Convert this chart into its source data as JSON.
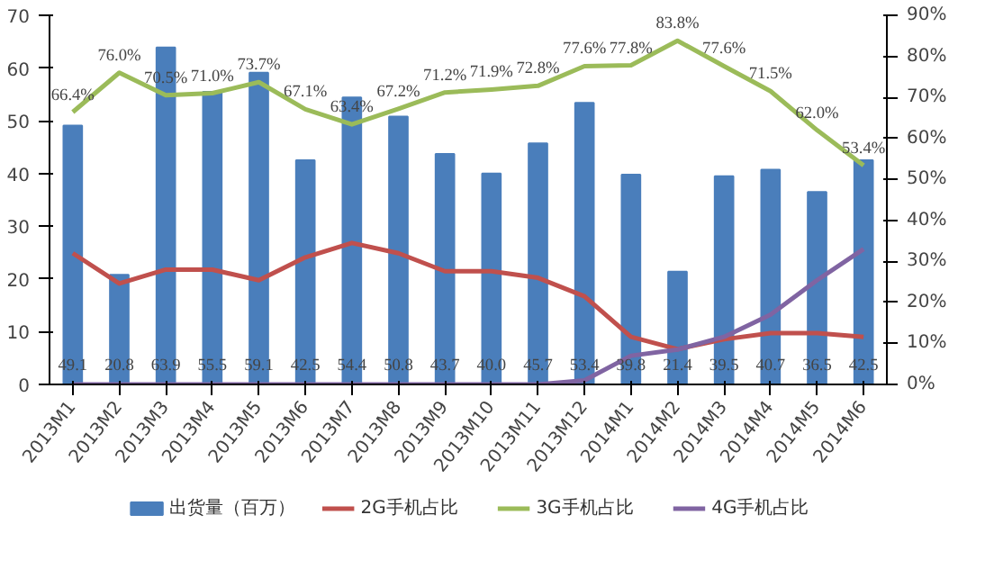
{
  "chart_data": {
    "type": "bar",
    "categories": [
      "2013M1",
      "2013M2",
      "2013M3",
      "2013M4",
      "2013M5",
      "2013M6",
      "2013M7",
      "2013M8",
      "2013M9",
      "2013M10",
      "2013M11",
      "2013M12",
      "2014M1",
      "2014M2",
      "2014M3",
      "2014M4",
      "2014M5",
      "2014M6"
    ],
    "series": [
      {
        "name": "出货量（百万）",
        "color": "#4a7ebb",
        "values": [
          49.1,
          20.8,
          63.9,
          55.5,
          59.1,
          42.5,
          54.4,
          50.8,
          43.7,
          40.0,
          45.7,
          53.4,
          39.8,
          21.4,
          39.5,
          40.7,
          36.5,
          42.5
        ],
        "value_labels": [
          "49.1",
          "20.8",
          "63.9",
          "55.5",
          "59.1",
          "42.5",
          "54.4",
          "50.8",
          "43.7",
          "40.0",
          "45.7",
          "53.4",
          "39.8",
          "21.4",
          "39.5",
          "40.7",
          "36.5",
          "42.5"
        ]
      },
      {
        "name": "2G手机占比",
        "type": "line",
        "axis": "y2",
        "color": "#c0504d",
        "values": [
          32,
          24.6,
          28,
          28,
          25.4,
          31,
          34.5,
          32,
          27.6,
          27.6,
          26,
          21.5,
          11.6,
          8.6,
          11,
          12.5,
          12.5,
          11.6
        ]
      },
      {
        "name": "3G手机占比",
        "type": "line",
        "axis": "y2",
        "color": "#9bbb59",
        "values": [
          66.4,
          76.0,
          70.5,
          71.0,
          73.7,
          67.1,
          63.4,
          67.2,
          71.2,
          71.9,
          72.8,
          77.6,
          77.8,
          83.8,
          77.6,
          71.5,
          62.0,
          53.4
        ],
        "value_labels": [
          "66.4%",
          "76.0%",
          "70.5%",
          "71.0%",
          "73.7%",
          "67.1%",
          "63.4%",
          "67.2%",
          "71.2%",
          "71.9%",
          "72.8%",
          "77.6%",
          "77.8%",
          "83.8%",
          "77.6%",
          "71.5%",
          "62.0%",
          "53.4%"
        ]
      },
      {
        "name": "4G手机占比",
        "type": "line",
        "axis": "y2",
        "color": "#8064a2",
        "values": [
          0,
          0,
          0,
          0,
          0,
          0,
          0,
          0,
          0,
          0,
          0,
          1,
          7,
          8.5,
          11.6,
          17,
          25.4,
          33
        ]
      }
    ],
    "ylim": [
      0,
      70
    ],
    "yticks": [
      0,
      10,
      20,
      30,
      40,
      50,
      60,
      70
    ],
    "y2lim": [
      0,
      90
    ],
    "y2ticks": [
      {
        "value": 0,
        "label": "0%"
      },
      {
        "value": 10,
        "label": "10%"
      },
      {
        "value": 20,
        "label": "20%"
      },
      {
        "value": 30,
        "label": "30%"
      },
      {
        "value": 40,
        "label": "40%"
      },
      {
        "value": 50,
        "label": "50%"
      },
      {
        "value": 60,
        "label": "60%"
      },
      {
        "value": 70,
        "label": "70%"
      },
      {
        "value": 80,
        "label": "80%"
      },
      {
        "value": 90,
        "label": "90%"
      }
    ],
    "legend": "bottom",
    "grid": false
  }
}
